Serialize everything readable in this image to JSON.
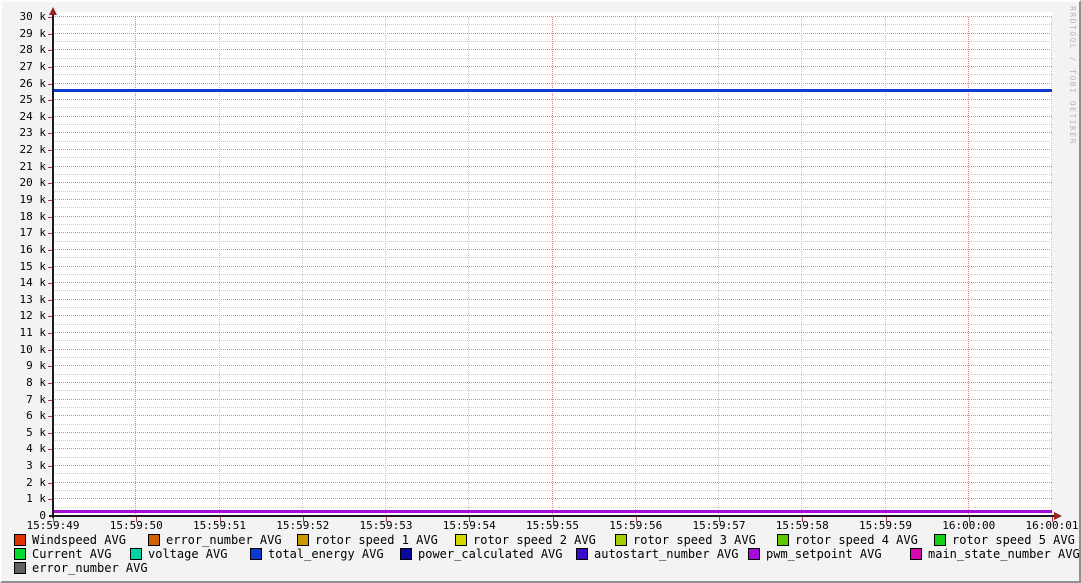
{
  "watermark": "RRDTOOL / TOBI OETIKER",
  "colors": {
    "outer_bg": "#f3f3f3",
    "plot_bg": "#ffffff",
    "grid_major": "#f08080",
    "grid_minor": "#c8c8c8",
    "axis": "#1a1a1a",
    "arrow": "#992222",
    "tick": "#b33a3a",
    "watermark_text": "#b9b9b9"
  },
  "chart_data": {
    "type": "line",
    "title": "",
    "xlabel": "",
    "ylabel": "",
    "x_axis": {
      "tick_labels": [
        "15:59:49",
        "15:59:50",
        "15:59:51",
        "15:59:52",
        "15:59:53",
        "15:59:54",
        "15:59:55",
        "15:59:56",
        "15:59:57",
        "15:59:58",
        "15:59:59",
        "16:00:00",
        "16:00:01"
      ],
      "span_seconds": 12,
      "label_step_seconds": 1,
      "minor_grid_step_seconds": 1,
      "major_grid_at": [
        "15:59:50",
        "15:59:55",
        "16:00:00"
      ],
      "grid": true
    },
    "y_axis": {
      "tick_labels": [
        "30 k",
        "29 k",
        "28 k",
        "27 k",
        "26 k",
        "25 k",
        "24 k",
        "23 k",
        "22 k",
        "21 k",
        "20 k",
        "19 k",
        "18 k",
        "17 k",
        "16 k",
        "15 k",
        "14 k",
        "13 k",
        "12 k",
        "11 k",
        "10 k",
        "9 k",
        "8 k",
        "7 k",
        "6 k",
        "5 k",
        "4 k",
        "3 k",
        "2 k",
        "1 k",
        "0"
      ],
      "min": 0,
      "max": 30000,
      "major_step": 1000,
      "minor_step": 500
    },
    "visible_series": [
      {
        "name": "total_energy AVG",
        "color": "#0d3ad0",
        "shape": "flat-line",
        "value": 25580,
        "x": [
          "15:59:49",
          "16:00:01"
        ],
        "values": [
          25580,
          25580
        ]
      },
      {
        "name": "pwm_setpoint AVG",
        "color": "#a80ad8",
        "shape": "flat-line",
        "value": 270,
        "x": [
          "15:59:49",
          "16:00:01"
        ],
        "values": [
          270,
          270
        ]
      }
    ],
    "legend": {
      "rows": [
        [
          {
            "label": "Windspeed AVG",
            "color": "#e03101"
          },
          {
            "label": "error_number AVG",
            "color": "#d26000"
          },
          {
            "label": "rotor speed 1 AVG",
            "color": "#c89b00"
          },
          {
            "label": "rotor speed 2 AVG",
            "color": "#d6d600"
          },
          {
            "label": "rotor speed 3 AVG",
            "color": "#a2d000"
          },
          {
            "label": "rotor speed 4 AVG",
            "color": "#5fc800"
          },
          {
            "label": "rotor speed 5 AVG",
            "color": "#18d018"
          }
        ],
        [
          {
            "label": "Current AVG",
            "color": "#00dc30"
          },
          {
            "label": "voltage AVG",
            "color": "#00d4a4"
          },
          {
            "label": "total_energy AVG",
            "color": "#0d3ad0"
          },
          {
            "label": "power_calculated AVG",
            "color": "#0a0aa0"
          },
          {
            "label": "autostart_number AVG",
            "color": "#3a0ac8"
          },
          {
            "label": "pwm_setpoint AVG",
            "color": "#a80ad8"
          },
          {
            "label": "main_state_number AVG",
            "color": "#d40aae"
          }
        ],
        [
          {
            "label": "error_number AVG",
            "color": "#606060"
          }
        ]
      ],
      "legend_position": "bottom"
    }
  }
}
